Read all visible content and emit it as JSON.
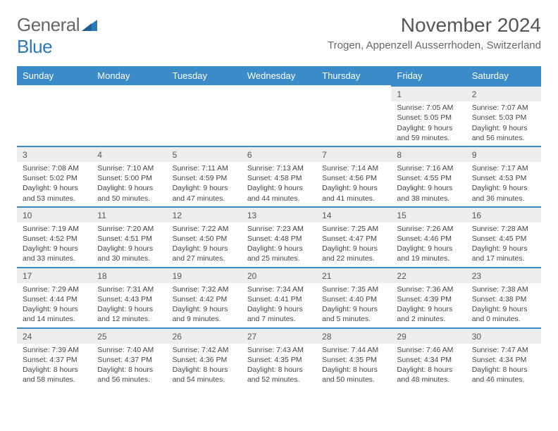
{
  "header": {
    "logo_general": "General",
    "logo_blue": "Blue",
    "month_title": "November 2024",
    "location": "Trogen, Appenzell Ausserrhoden, Switzerland"
  },
  "logo": {
    "triangle_color": "#2a7ab9"
  },
  "style": {
    "th_bg": "#3b8bc9",
    "daynum_bg": "#ededed",
    "daynum_border": "#3b8bc9"
  },
  "weekdays": [
    "Sunday",
    "Monday",
    "Tuesday",
    "Wednesday",
    "Thursday",
    "Friday",
    "Saturday"
  ],
  "weeks": [
    [
      {
        "empty": true
      },
      {
        "empty": true
      },
      {
        "empty": true
      },
      {
        "empty": true
      },
      {
        "empty": true
      },
      {
        "n": "1",
        "sr": "Sunrise: 7:05 AM",
        "ss": "Sunset: 5:05 PM",
        "dl1": "Daylight: 9 hours",
        "dl2": "and 59 minutes."
      },
      {
        "n": "2",
        "sr": "Sunrise: 7:07 AM",
        "ss": "Sunset: 5:03 PM",
        "dl1": "Daylight: 9 hours",
        "dl2": "and 56 minutes."
      }
    ],
    [
      {
        "n": "3",
        "sr": "Sunrise: 7:08 AM",
        "ss": "Sunset: 5:02 PM",
        "dl1": "Daylight: 9 hours",
        "dl2": "and 53 minutes."
      },
      {
        "n": "4",
        "sr": "Sunrise: 7:10 AM",
        "ss": "Sunset: 5:00 PM",
        "dl1": "Daylight: 9 hours",
        "dl2": "and 50 minutes."
      },
      {
        "n": "5",
        "sr": "Sunrise: 7:11 AM",
        "ss": "Sunset: 4:59 PM",
        "dl1": "Daylight: 9 hours",
        "dl2": "and 47 minutes."
      },
      {
        "n": "6",
        "sr": "Sunrise: 7:13 AM",
        "ss": "Sunset: 4:58 PM",
        "dl1": "Daylight: 9 hours",
        "dl2": "and 44 minutes."
      },
      {
        "n": "7",
        "sr": "Sunrise: 7:14 AM",
        "ss": "Sunset: 4:56 PM",
        "dl1": "Daylight: 9 hours",
        "dl2": "and 41 minutes."
      },
      {
        "n": "8",
        "sr": "Sunrise: 7:16 AM",
        "ss": "Sunset: 4:55 PM",
        "dl1": "Daylight: 9 hours",
        "dl2": "and 38 minutes."
      },
      {
        "n": "9",
        "sr": "Sunrise: 7:17 AM",
        "ss": "Sunset: 4:53 PM",
        "dl1": "Daylight: 9 hours",
        "dl2": "and 36 minutes."
      }
    ],
    [
      {
        "n": "10",
        "sr": "Sunrise: 7:19 AM",
        "ss": "Sunset: 4:52 PM",
        "dl1": "Daylight: 9 hours",
        "dl2": "and 33 minutes."
      },
      {
        "n": "11",
        "sr": "Sunrise: 7:20 AM",
        "ss": "Sunset: 4:51 PM",
        "dl1": "Daylight: 9 hours",
        "dl2": "and 30 minutes."
      },
      {
        "n": "12",
        "sr": "Sunrise: 7:22 AM",
        "ss": "Sunset: 4:50 PM",
        "dl1": "Daylight: 9 hours",
        "dl2": "and 27 minutes."
      },
      {
        "n": "13",
        "sr": "Sunrise: 7:23 AM",
        "ss": "Sunset: 4:48 PM",
        "dl1": "Daylight: 9 hours",
        "dl2": "and 25 minutes."
      },
      {
        "n": "14",
        "sr": "Sunrise: 7:25 AM",
        "ss": "Sunset: 4:47 PM",
        "dl1": "Daylight: 9 hours",
        "dl2": "and 22 minutes."
      },
      {
        "n": "15",
        "sr": "Sunrise: 7:26 AM",
        "ss": "Sunset: 4:46 PM",
        "dl1": "Daylight: 9 hours",
        "dl2": "and 19 minutes."
      },
      {
        "n": "16",
        "sr": "Sunrise: 7:28 AM",
        "ss": "Sunset: 4:45 PM",
        "dl1": "Daylight: 9 hours",
        "dl2": "and 17 minutes."
      }
    ],
    [
      {
        "n": "17",
        "sr": "Sunrise: 7:29 AM",
        "ss": "Sunset: 4:44 PM",
        "dl1": "Daylight: 9 hours",
        "dl2": "and 14 minutes."
      },
      {
        "n": "18",
        "sr": "Sunrise: 7:31 AM",
        "ss": "Sunset: 4:43 PM",
        "dl1": "Daylight: 9 hours",
        "dl2": "and 12 minutes."
      },
      {
        "n": "19",
        "sr": "Sunrise: 7:32 AM",
        "ss": "Sunset: 4:42 PM",
        "dl1": "Daylight: 9 hours",
        "dl2": "and 9 minutes."
      },
      {
        "n": "20",
        "sr": "Sunrise: 7:34 AM",
        "ss": "Sunset: 4:41 PM",
        "dl1": "Daylight: 9 hours",
        "dl2": "and 7 minutes."
      },
      {
        "n": "21",
        "sr": "Sunrise: 7:35 AM",
        "ss": "Sunset: 4:40 PM",
        "dl1": "Daylight: 9 hours",
        "dl2": "and 5 minutes."
      },
      {
        "n": "22",
        "sr": "Sunrise: 7:36 AM",
        "ss": "Sunset: 4:39 PM",
        "dl1": "Daylight: 9 hours",
        "dl2": "and 2 minutes."
      },
      {
        "n": "23",
        "sr": "Sunrise: 7:38 AM",
        "ss": "Sunset: 4:38 PM",
        "dl1": "Daylight: 9 hours",
        "dl2": "and 0 minutes."
      }
    ],
    [
      {
        "n": "24",
        "sr": "Sunrise: 7:39 AM",
        "ss": "Sunset: 4:37 PM",
        "dl1": "Daylight: 8 hours",
        "dl2": "and 58 minutes."
      },
      {
        "n": "25",
        "sr": "Sunrise: 7:40 AM",
        "ss": "Sunset: 4:37 PM",
        "dl1": "Daylight: 8 hours",
        "dl2": "and 56 minutes."
      },
      {
        "n": "26",
        "sr": "Sunrise: 7:42 AM",
        "ss": "Sunset: 4:36 PM",
        "dl1": "Daylight: 8 hours",
        "dl2": "and 54 minutes."
      },
      {
        "n": "27",
        "sr": "Sunrise: 7:43 AM",
        "ss": "Sunset: 4:35 PM",
        "dl1": "Daylight: 8 hours",
        "dl2": "and 52 minutes."
      },
      {
        "n": "28",
        "sr": "Sunrise: 7:44 AM",
        "ss": "Sunset: 4:35 PM",
        "dl1": "Daylight: 8 hours",
        "dl2": "and 50 minutes."
      },
      {
        "n": "29",
        "sr": "Sunrise: 7:46 AM",
        "ss": "Sunset: 4:34 PM",
        "dl1": "Daylight: 8 hours",
        "dl2": "and 48 minutes."
      },
      {
        "n": "30",
        "sr": "Sunrise: 7:47 AM",
        "ss": "Sunset: 4:34 PM",
        "dl1": "Daylight: 8 hours",
        "dl2": "and 46 minutes."
      }
    ]
  ]
}
